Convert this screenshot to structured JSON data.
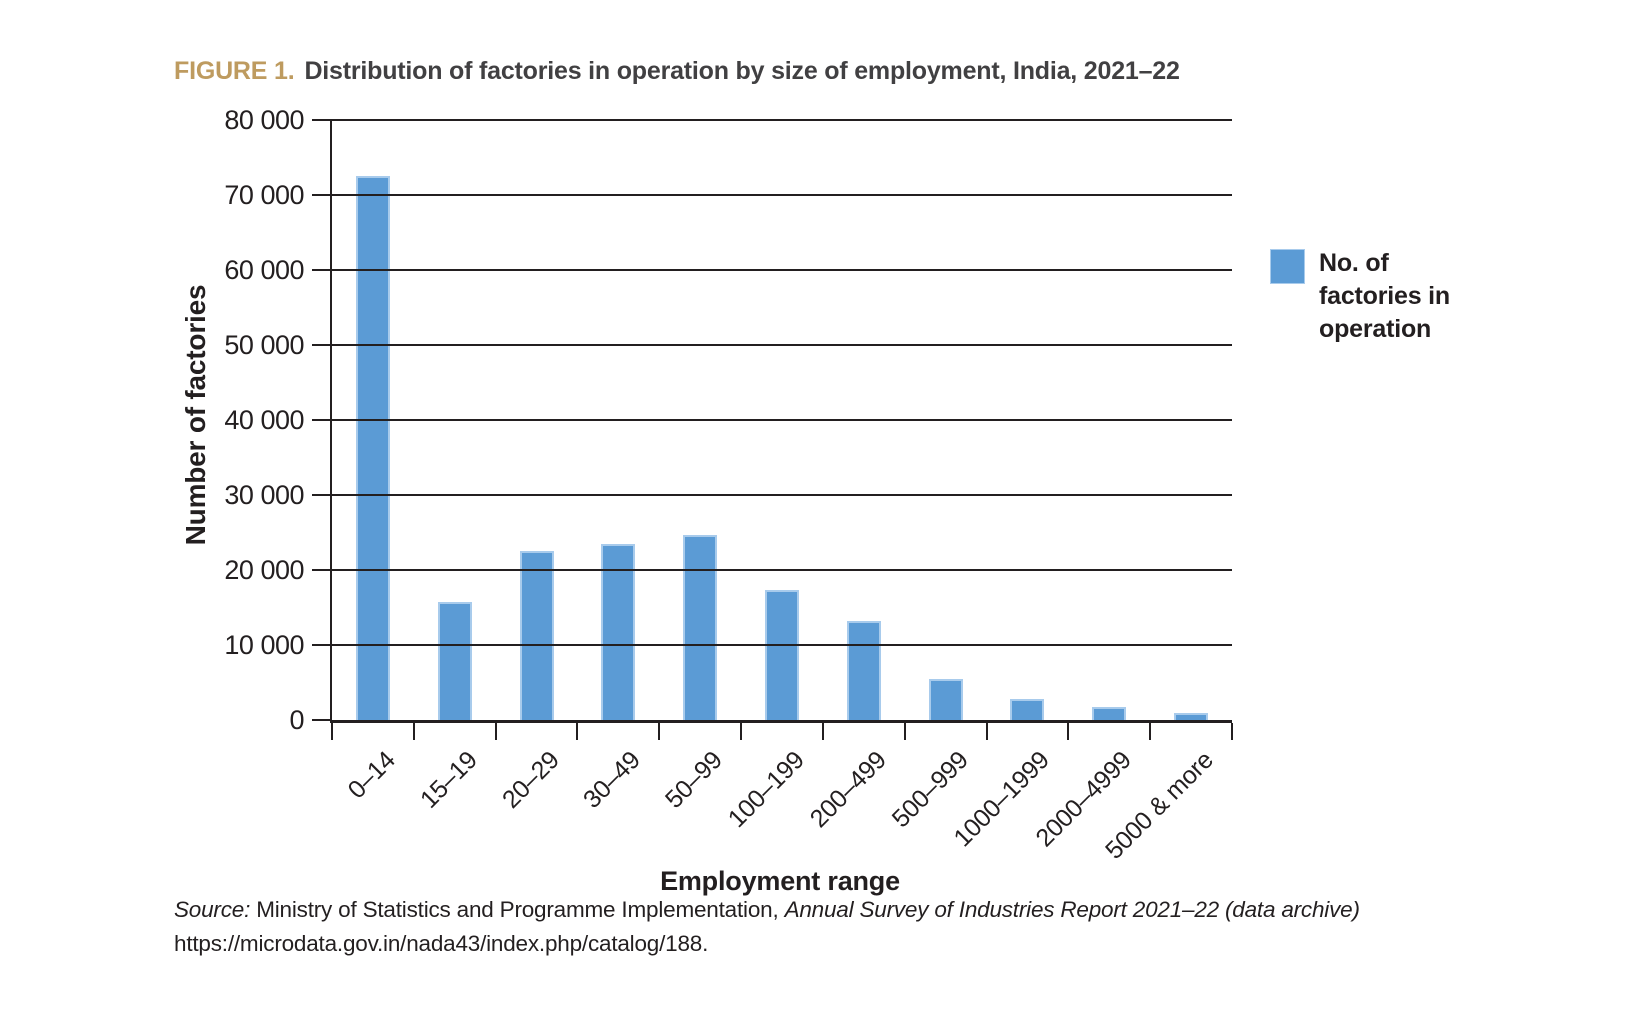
{
  "figure": {
    "label": "FIGURE 1.",
    "title": "Distribution of factories in operation by size of employment, India, 2021–22"
  },
  "chart_data": {
    "type": "bar",
    "title": "Distribution of factories in operation by size of employment, India, 2021–22",
    "categories": [
      "0–14",
      "15–19",
      "20–29",
      "30–49",
      "50–99",
      "100–199",
      "200–499",
      "500–999",
      "1000–1999",
      "2000–4999",
      "5000 & more"
    ],
    "values": [
      72500,
      15800,
      22500,
      23500,
      24700,
      17400,
      13200,
      5500,
      2800,
      1800,
      900
    ],
    "series_name": "No. of factories in operation",
    "xlabel": "Employment range",
    "ylabel": "Number of factories",
    "ylim": [
      0,
      80000
    ],
    "ytick_step": 10000,
    "ytick_labels": [
      "0",
      "10 000",
      "20 000",
      "30 000",
      "40 000",
      "50 000",
      "60 000",
      "70 000",
      "80 000"
    ],
    "grid": "horizontal",
    "gridlines_over_bars": true,
    "legend_position": "right"
  },
  "source": {
    "label_italic": "Source:",
    "ministry_text": " Ministry of Statistics and Programme Implementation, ",
    "report_italic": "Annual Survey of Industries Report 2021–22 (data archive)",
    "url_line": "https://microdata.gov.in/nada43/index.php/catalog/188."
  },
  "colors": {
    "bar_fill": "#5B9BD5",
    "bar_edge": "#A8CBEC",
    "figure_label": "#BE9B5F",
    "title_text": "#414042",
    "axis_and_text": "#231F20"
  }
}
